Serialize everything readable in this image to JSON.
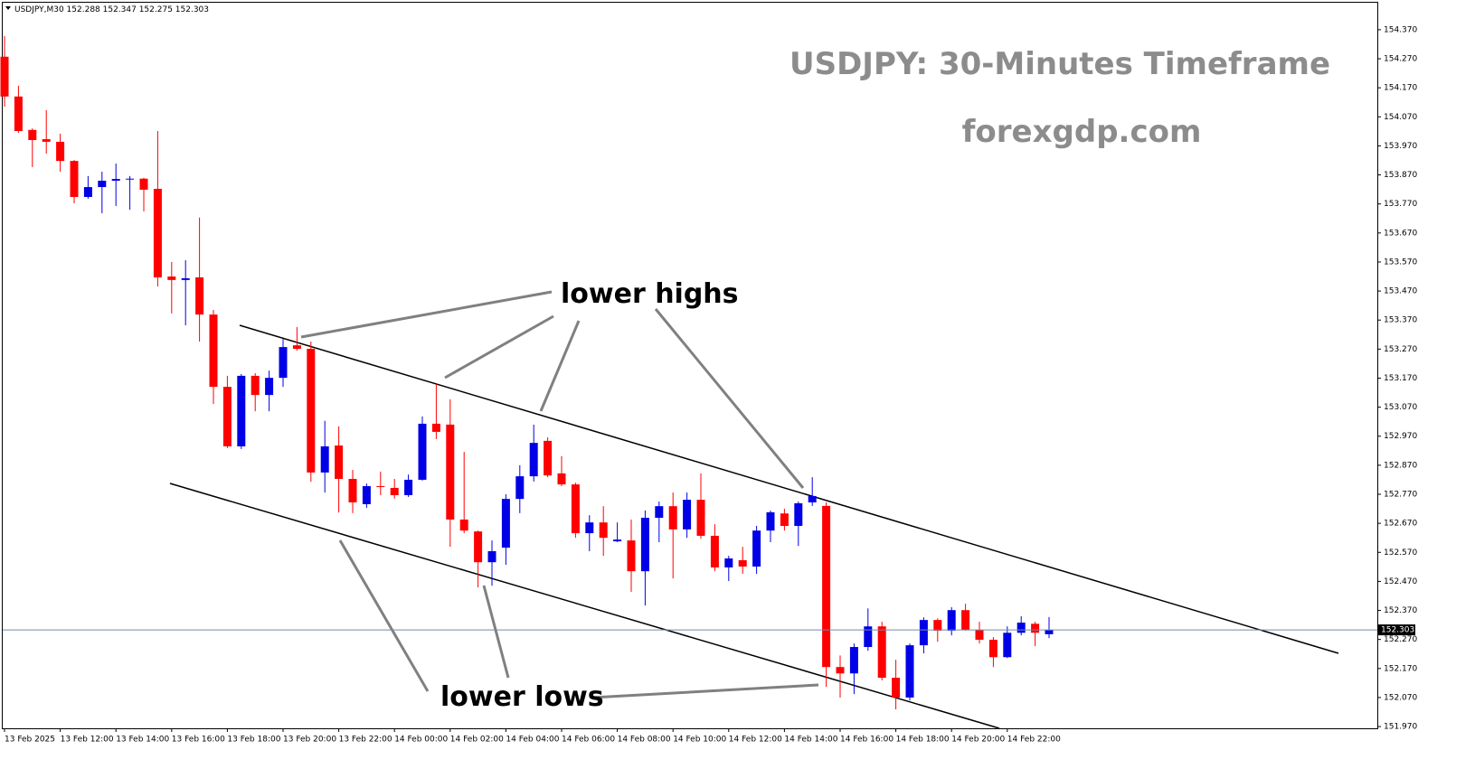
{
  "chart_data": {
    "type": "candlestick",
    "header": "USDJPY,M30  152.288 152.347 152.275 152.303",
    "title": "USDJPY: 30-Minutes Timeframe",
    "subtitle": "forexgdp.com",
    "annotations": [
      "lower highs",
      "lower lows"
    ],
    "categories": [
      "13 Feb 2025",
      null,
      null,
      null,
      "13 Feb 12:00",
      null,
      null,
      null,
      "13 Feb 14:00",
      null,
      null,
      null,
      "13 Feb 16:00",
      null,
      null,
      null,
      "13 Feb 18:00",
      null,
      null,
      null,
      "13 Feb 20:00",
      null,
      null,
      null,
      "13 Feb 22:00",
      null,
      null,
      null,
      "14 Feb 00:00",
      null,
      null,
      null,
      "14 Feb 02:00",
      null,
      null,
      null,
      "14 Feb 04:00",
      null,
      null,
      null,
      "14 Feb 06:00",
      null,
      null,
      null,
      "14 Feb 08:00",
      null,
      null,
      null,
      "14 Feb 10:00",
      null,
      null,
      null,
      "14 Feb 12:00",
      null,
      null,
      null,
      "14 Feb 14:00",
      null,
      null,
      null,
      "14 Feb 16:00",
      null,
      null,
      null,
      "14 Feb 18:00",
      null,
      null,
      null,
      "14 Feb 20:00",
      null,
      null,
      null,
      "14 Feb 22:00",
      null,
      null,
      null
    ],
    "open": [
      154.277,
      154.14,
      154.025,
      153.993,
      153.984,
      153.918,
      153.794,
      153.828,
      153.85,
      153.856,
      153.857,
      153.822,
      153.52,
      153.508,
      153.517,
      153.389,
      153.14,
      152.935,
      153.178,
      153.112,
      153.171,
      153.283,
      153.271,
      152.845,
      152.938,
      152.823,
      152.736,
      152.798,
      152.792,
      152.767,
      152.82,
      153.013,
      153.01,
      152.683,
      152.642,
      152.536,
      152.586,
      152.754,
      152.832,
      152.954,
      152.842,
      152.804,
      152.636,
      152.673,
      152.608,
      152.611,
      152.505,
      152.689,
      152.729,
      152.649,
      152.751,
      152.627,
      152.518,
      152.543,
      152.521,
      152.645,
      152.704,
      152.661,
      152.742,
      152.73,
      152.175,
      152.153,
      152.244,
      152.315,
      152.138,
      152.07,
      152.25,
      152.337,
      152.3,
      152.371,
      152.303,
      152.269,
      152.209,
      152.293,
      152.324,
      152.288
    ],
    "high": [
      154.348,
      154.177,
      154.03,
      154.093,
      154.012,
      153.921,
      153.866,
      153.881,
      153.909,
      153.866,
      153.86,
      154.021,
      153.57,
      153.576,
      153.723,
      153.405,
      153.178,
      153.184,
      153.187,
      153.196,
      153.305,
      153.346,
      153.296,
      153.023,
      153.004,
      152.854,
      152.807,
      152.848,
      152.823,
      152.838,
      153.038,
      153.15,
      153.097,
      152.916,
      152.645,
      152.611,
      152.77,
      152.87,
      153.01,
      152.966,
      152.901,
      152.81,
      152.698,
      152.729,
      152.673,
      152.683,
      152.714,
      152.745,
      152.776,
      152.776,
      152.842,
      152.667,
      152.558,
      152.589,
      152.661,
      152.714,
      152.72,
      152.745,
      152.829,
      152.742,
      152.215,
      152.256,
      152.377,
      152.331,
      152.2,
      152.256,
      152.346,
      152.343,
      152.381,
      152.393,
      152.331,
      152.278,
      152.315,
      152.35,
      152.331,
      152.347
    ],
    "low": [
      154.105,
      154.015,
      153.897,
      153.943,
      153.881,
      153.772,
      153.788,
      153.738,
      153.763,
      153.75,
      153.744,
      153.486,
      153.393,
      153.352,
      153.296,
      153.081,
      152.929,
      152.926,
      153.056,
      153.056,
      153.14,
      153.265,
      152.813,
      152.776,
      152.707,
      152.705,
      152.723,
      152.767,
      152.755,
      152.761,
      152.817,
      152.96,
      152.589,
      152.636,
      152.449,
      152.455,
      152.527,
      152.705,
      152.814,
      152.829,
      152.798,
      152.62,
      152.574,
      152.558,
      152.605,
      152.434,
      152.387,
      152.605,
      152.48,
      152.62,
      152.617,
      152.505,
      152.471,
      152.496,
      152.496,
      152.605,
      152.645,
      152.592,
      152.73,
      152.107,
      152.07,
      152.082,
      152.231,
      152.129,
      152.029,
      152.06,
      152.222,
      152.262,
      152.284,
      152.3,
      152.256,
      152.175,
      152.206,
      152.284,
      152.247,
      152.275
    ],
    "close": [
      154.14,
      154.021,
      153.99,
      153.984,
      153.918,
      153.794,
      153.828,
      153.85,
      153.856,
      153.857,
      153.819,
      153.517,
      153.508,
      153.514,
      153.389,
      153.14,
      152.935,
      153.178,
      153.112,
      153.171,
      153.277,
      153.271,
      152.845,
      152.935,
      152.823,
      152.742,
      152.798,
      152.795,
      152.767,
      152.82,
      153.013,
      152.985,
      152.683,
      152.645,
      152.536,
      152.574,
      152.754,
      152.832,
      152.947,
      152.835,
      152.804,
      152.636,
      152.673,
      152.62,
      152.614,
      152.505,
      152.689,
      152.729,
      152.649,
      152.751,
      152.627,
      152.518,
      152.549,
      152.521,
      152.645,
      152.708,
      152.661,
      152.739,
      152.764,
      152.175,
      152.153,
      152.244,
      152.315,
      152.138,
      152.07,
      152.25,
      152.337,
      152.3,
      152.371,
      152.303,
      152.269,
      152.209,
      152.293,
      152.328,
      152.293,
      152.303
    ],
    "up_color": "#0000e6",
    "down_color": "#ff0000",
    "current_price": 152.303,
    "current_price_color": "#6f8bab",
    "ylim": [
      151.964,
      154.463
    ],
    "yticks": [
      {
        "value": 154.37,
        "label": "154.370"
      },
      {
        "value": 154.27,
        "label": "154.270"
      },
      {
        "value": 154.17,
        "label": "154.170"
      },
      {
        "value": 154.07,
        "label": "154.070"
      },
      {
        "value": 153.97,
        "label": "153.970"
      },
      {
        "value": 153.87,
        "label": "153.870"
      },
      {
        "value": 153.77,
        "label": "153.770"
      },
      {
        "value": 153.67,
        "label": "153.670"
      },
      {
        "value": 153.57,
        "label": "153.570"
      },
      {
        "value": 153.47,
        "label": "153.470"
      },
      {
        "value": 153.37,
        "label": "153.370"
      },
      {
        "value": 153.27,
        "label": "153.270"
      },
      {
        "value": 153.17,
        "label": "153.170"
      },
      {
        "value": 153.07,
        "label": "153.070"
      },
      {
        "value": 152.97,
        "label": "152.970"
      },
      {
        "value": 152.87,
        "label": "152.870"
      },
      {
        "value": 152.77,
        "label": "152.770"
      },
      {
        "value": 152.67,
        "label": "152.670"
      },
      {
        "value": 152.57,
        "label": "152.570"
      },
      {
        "value": 152.47,
        "label": "152.470"
      },
      {
        "value": 152.37,
        "label": "152.370"
      },
      {
        "value": 152.27,
        "label": "152.270"
      },
      {
        "value": 152.17,
        "label": "152.170"
      },
      {
        "value": 152.07,
        "label": "152.070"
      },
      {
        "value": 151.97,
        "label": "151.970"
      }
    ]
  }
}
